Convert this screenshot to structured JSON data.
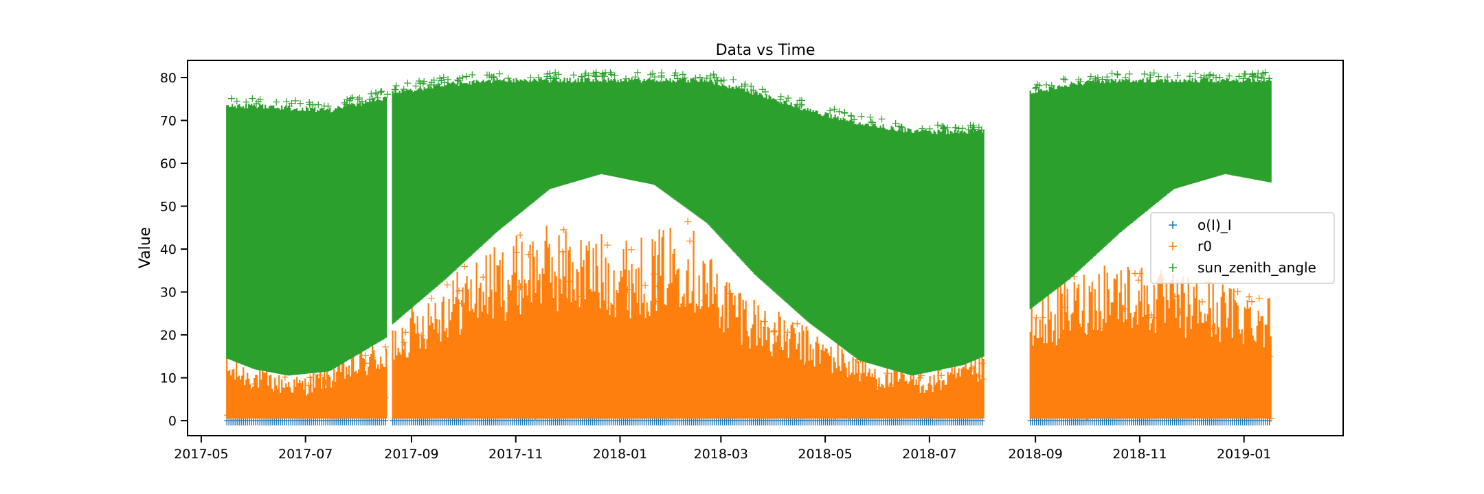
{
  "chart_data": {
    "type": "scatter",
    "title": "Data vs Time",
    "xlabel": "",
    "ylabel": "Value",
    "marker": "+",
    "xlim": [
      "2017-04-23",
      "2019-02-28"
    ],
    "ylim": [
      -3.5,
      84
    ],
    "x_ticks": [
      "2017-05-01",
      "2017-07-01",
      "2017-09-01",
      "2017-11-01",
      "2018-01-01",
      "2018-03-01",
      "2018-05-01",
      "2018-07-01",
      "2018-09-01",
      "2018-11-01",
      "2019-01-01"
    ],
    "x_tick_labels": [
      "2017-05",
      "2017-07",
      "2017-09",
      "2017-11",
      "2018-01",
      "2018-03",
      "2018-05",
      "2018-07",
      "2018-09",
      "2018-11",
      "2019-01"
    ],
    "y_ticks": [
      0,
      10,
      20,
      30,
      40,
      50,
      60,
      70,
      80
    ],
    "y_tick_labels": [
      "0",
      "10",
      "20",
      "30",
      "40",
      "50",
      "60",
      "70",
      "80"
    ],
    "grid": false,
    "legend_position": "center-right",
    "data_segments": [
      {
        "start": "2017-05-16",
        "end": "2017-08-18"
      },
      {
        "start": "2017-08-21",
        "end": "2018-08-02"
      },
      {
        "start": "2018-08-29",
        "end": "2019-01-17"
      }
    ],
    "series": [
      {
        "name": "o(I)_I",
        "color": "#1f77b4",
        "description_values": "dense near 0 across all observation periods",
        "x": [
          "2017-05-16",
          "2017-07-01",
          "2017-08-18",
          "2017-08-21",
          "2017-11-01",
          "2018-01-01",
          "2018-03-01",
          "2018-05-01",
          "2018-08-02",
          "2018-08-29",
          "2018-11-01",
          "2019-01-17"
        ],
        "y_min": [
          -0.3,
          -0.3,
          -0.3,
          -0.3,
          -0.3,
          -0.3,
          -0.3,
          -0.3,
          -0.3,
          -0.3,
          -0.3,
          -0.3
        ],
        "y_max": [
          0.3,
          0.3,
          0.3,
          0.3,
          0.3,
          0.3,
          0.3,
          0.3,
          0.3,
          0.3,
          0.3,
          0.3
        ]
      },
      {
        "name": "r0",
        "color": "#ff7f0e",
        "x": [
          "2017-05-16",
          "2017-06-15",
          "2017-07-01",
          "2017-08-18",
          "2017-08-21",
          "2017-09-15",
          "2017-10-15",
          "2017-11-15",
          "2017-12-21",
          "2018-01-15",
          "2018-02-08",
          "2018-03-01",
          "2018-04-01",
          "2018-05-01",
          "2018-06-01",
          "2018-07-01",
          "2018-08-02",
          "2018-08-29",
          "2018-09-15",
          "2018-10-15",
          "2018-11-15",
          "2018-12-15",
          "2019-01-17"
        ],
        "y_min": [
          0.5,
          0.5,
          0.5,
          0.5,
          0.5,
          0.5,
          0.5,
          0.5,
          0.5,
          0.5,
          0.5,
          0.5,
          0.5,
          0.5,
          0.5,
          0.5,
          0.5,
          0.5,
          0.5,
          0.5,
          0.5,
          0.5,
          0.5
        ],
        "y_max": [
          15,
          11,
          10.5,
          20,
          23,
          32,
          40,
          46,
          44,
          43,
          48,
          36,
          26,
          20,
          13,
          11,
          15.5,
          27,
          32,
          39,
          35,
          33,
          30
        ]
      },
      {
        "name": "sun_zenith_angle",
        "color": "#2ca02c",
        "x": [
          "2017-05-16",
          "2017-06-01",
          "2017-06-21",
          "2017-07-15",
          "2017-08-18",
          "2017-08-21",
          "2017-09-21",
          "2017-10-21",
          "2017-11-21",
          "2017-12-21",
          "2018-01-21",
          "2018-02-21",
          "2018-03-21",
          "2018-04-21",
          "2018-05-21",
          "2018-06-21",
          "2018-07-21",
          "2018-08-02",
          "2018-08-29",
          "2018-09-21",
          "2018-10-21",
          "2018-11-21",
          "2018-12-21",
          "2019-01-17"
        ],
        "y_min": [
          14.5,
          12,
          10.5,
          11.5,
          19.5,
          22.5,
          33,
          44,
          54,
          57.5,
          55,
          46,
          34,
          23,
          14,
          10.5,
          13,
          15,
          26,
          33,
          44,
          54,
          57.5,
          55.5
        ],
        "y_max": [
          74,
          74,
          73.5,
          73,
          76,
          77,
          79,
          80,
          80,
          80,
          80,
          80,
          77,
          73,
          70,
          68,
          68,
          68,
          77,
          79,
          80,
          80,
          80,
          80
        ]
      }
    ]
  }
}
